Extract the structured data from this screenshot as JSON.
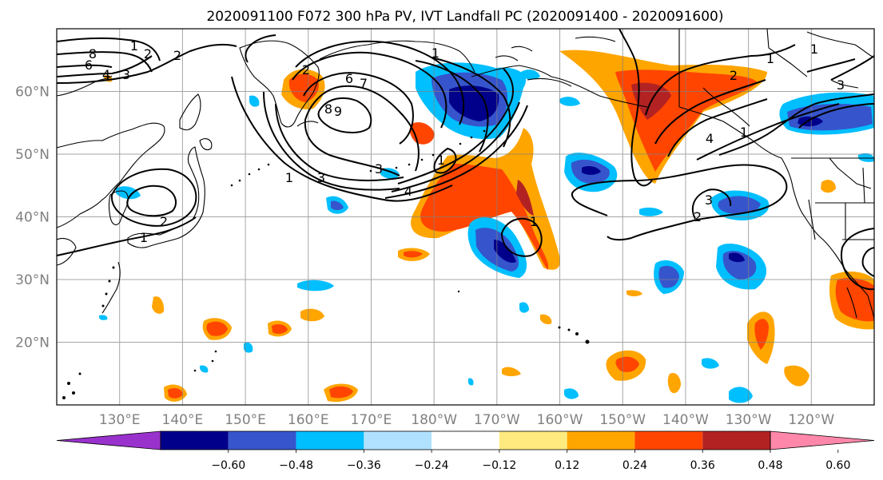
{
  "title": "2020091100 F072 300 hPa PV, IVT Landfall PC (2020091400 - 2020091600)",
  "map": {
    "lon_range": [
      120,
      250
    ],
    "lat_range": [
      10,
      70
    ],
    "lat_ticks": [
      {
        "value": 60,
        "label": "60°N"
      },
      {
        "value": 50,
        "label": "50°N"
      },
      {
        "value": 40,
        "label": "40°N"
      },
      {
        "value": 30,
        "label": "30°N"
      },
      {
        "value": 20,
        "label": "20°N"
      }
    ],
    "lon_ticks": [
      {
        "value": 130,
        "label": "130°E"
      },
      {
        "value": 140,
        "label": "140°E"
      },
      {
        "value": 150,
        "label": "150°E"
      },
      {
        "value": 160,
        "label": "160°E"
      },
      {
        "value": 170,
        "label": "170°E"
      },
      {
        "value": 180,
        "label": "180°W"
      },
      {
        "value": 190,
        "label": "170°W"
      },
      {
        "value": 200,
        "label": "160°W"
      },
      {
        "value": 210,
        "label": "150°W"
      },
      {
        "value": 220,
        "label": "140°W"
      },
      {
        "value": 230,
        "label": "130°W"
      },
      {
        "value": 240,
        "label": "120°W"
      }
    ],
    "grid": true,
    "pv_contour_labels": [
      "8",
      "6",
      "4",
      "3",
      "2",
      "1",
      "2",
      "6",
      "7",
      "8",
      "9",
      "3",
      "4",
      "1",
      "3",
      "2",
      "1",
      "1",
      "2",
      "1",
      "4",
      "1",
      "2",
      "3",
      "2",
      "3",
      "1",
      "1",
      "1"
    ]
  },
  "colorbar": {
    "ticks": [
      "−0.60",
      "−0.48",
      "−0.36",
      "−0.24",
      "−0.12",
      "0.12",
      "0.24",
      "0.36",
      "0.48",
      "0.60"
    ],
    "colors": [
      "#9932cc",
      "#00008b",
      "#3655cc",
      "#00bfff",
      "#b0e2ff",
      "#ffffff",
      "#ffea80",
      "#ffa500",
      "#ff4500",
      "#b22222",
      "#ff88aa"
    ],
    "extend": "both"
  }
}
